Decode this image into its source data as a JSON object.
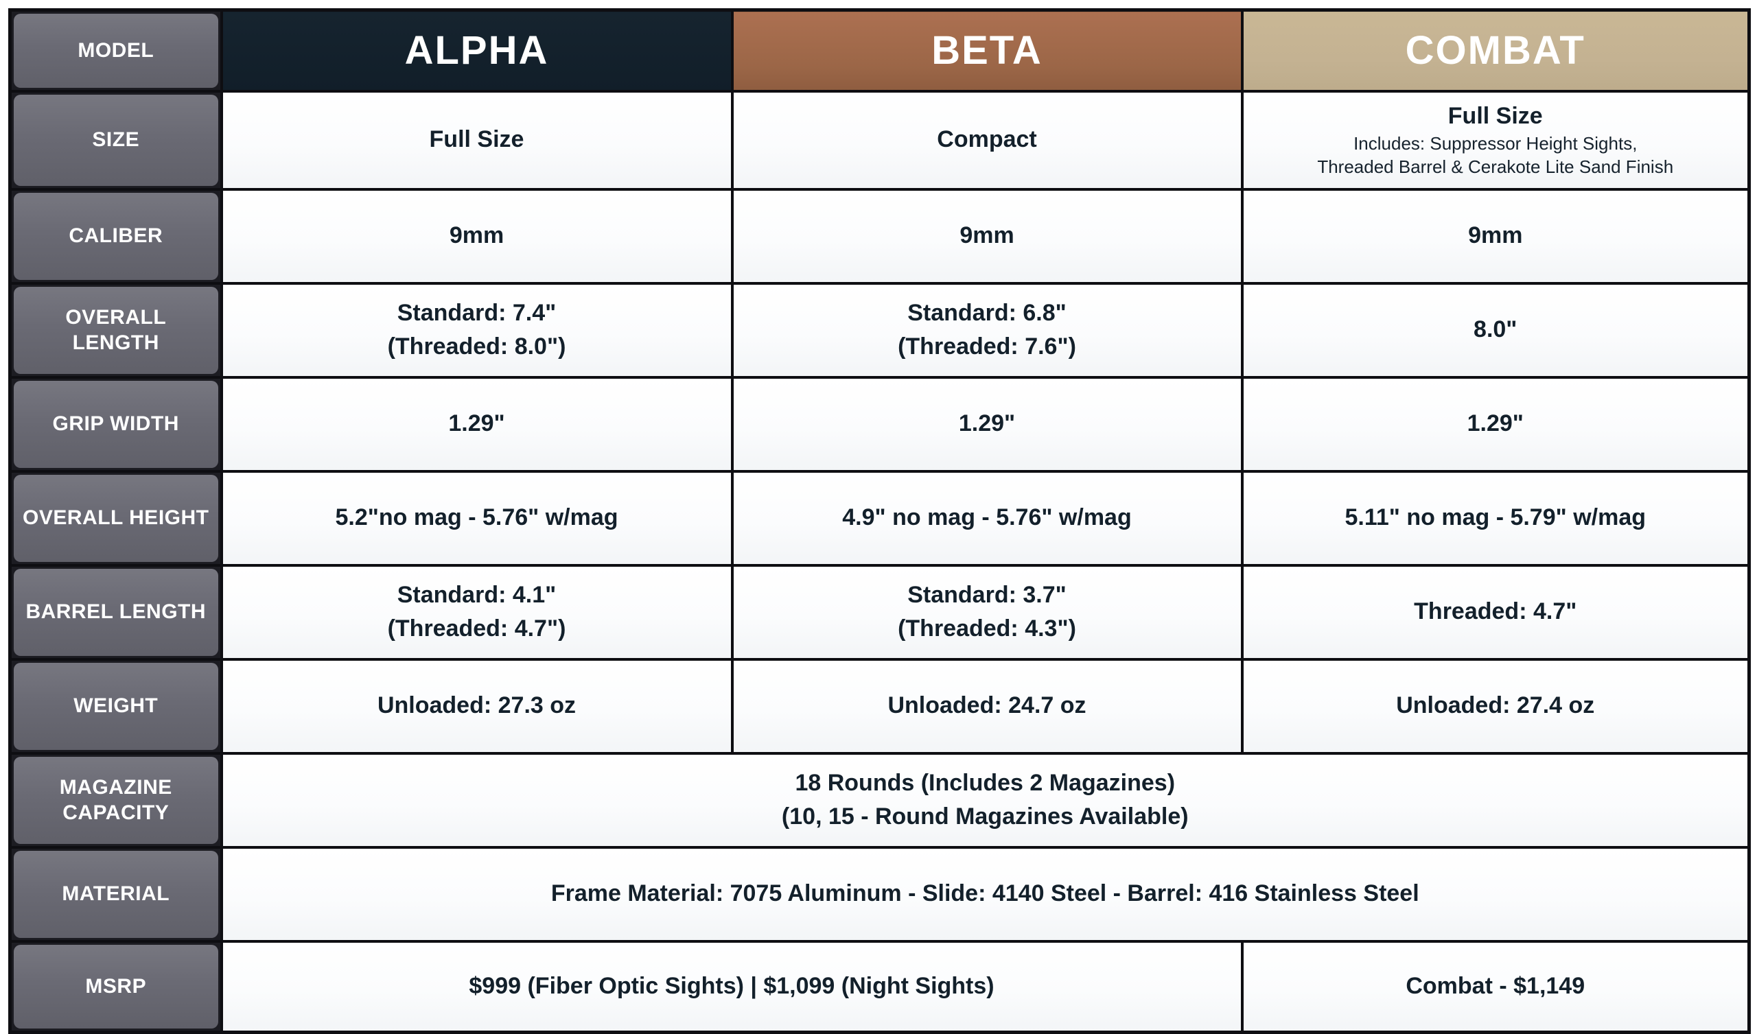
{
  "colors": {
    "border": "#0e0e12",
    "label_gray": "#6a6a74",
    "alpha_navy": "#13222e",
    "beta_brown": "#a3694a",
    "combat_tan": "#c4b292",
    "body_text": "#13202b",
    "header_text": "#ffffff"
  },
  "table": {
    "header": {
      "model": "MODEL",
      "alpha": "ALPHA",
      "beta": "BETA",
      "combat": "COMBAT"
    },
    "rows": {
      "size": {
        "label": "SIZE",
        "alpha": "Full Size",
        "beta": "Compact",
        "combat_title": "Full Size",
        "combat_sub1": "Includes: Suppressor Height Sights,",
        "combat_sub2": "Threaded Barrel & Cerakote Lite Sand Finish"
      },
      "caliber": {
        "label": "CALIBER",
        "alpha": "9mm",
        "beta": "9mm",
        "combat": "9mm"
      },
      "overall_length": {
        "label": "OVERALL LENGTH",
        "alpha_line1": "Standard: 7.4\"",
        "alpha_line2": "(Threaded: 8.0\")",
        "beta_line1": "Standard: 6.8\"",
        "beta_line2": "(Threaded: 7.6\")",
        "combat": "8.0\""
      },
      "grip_width": {
        "label": "GRIP WIDTH",
        "alpha": "1.29\"",
        "beta": "1.29\"",
        "combat": "1.29\""
      },
      "overall_height": {
        "label": "OVERALL HEIGHT",
        "alpha": "5.2\"no mag - 5.76\" w/mag",
        "beta": "4.9\" no mag - 5.76\" w/mag",
        "combat": "5.11\" no mag - 5.79\" w/mag"
      },
      "barrel_length": {
        "label": "BARREL LENGTH",
        "alpha_line1": "Standard: 4.1\"",
        "alpha_line2": "(Threaded: 4.7\")",
        "beta_line1": "Standard: 3.7\"",
        "beta_line2": "(Threaded: 4.3\")",
        "combat": "Threaded: 4.7\""
      },
      "weight": {
        "label": "WEIGHT",
        "alpha": "Unloaded: 27.3 oz",
        "beta": "Unloaded: 24.7 oz",
        "combat": "Unloaded: 27.4 oz"
      },
      "magazine_capacity": {
        "label": "MAGAZINE CAPACITY",
        "line1": "18 Rounds (Includes 2 Magazines)",
        "line2": "(10, 15 - Round Magazines Available)"
      },
      "material": {
        "label": "MATERIAL",
        "value": "Frame Material: 7075 Aluminum - Slide: 4140 Steel - Barrel: 416 Stainless Steel"
      },
      "msrp": {
        "label": "MSRP",
        "alpha_beta": "$999 (Fiber Optic Sights) | $1,099 (Night Sights)",
        "combat": "Combat - $1,149"
      }
    }
  }
}
